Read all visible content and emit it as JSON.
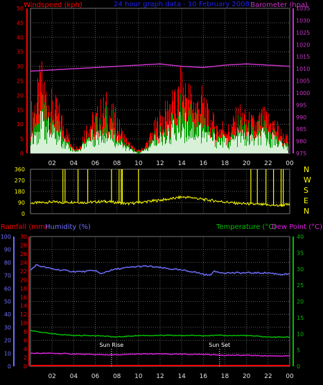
{
  "colors": {
    "background": "#000000",
    "grid": "#606060",
    "wind": "#ff0000",
    "gust_fill": "#00a000",
    "avg_fill": "#d8f0d8",
    "barometer": "#cc33cc",
    "direction": "#ffff00",
    "rainfall": "#ff0000",
    "humidity": "#6f6fff",
    "temperature": "#00c000",
    "dewpoint": "#dd22dd",
    "sun_marker": "#ffffff"
  },
  "header": {
    "windspeed_label": "Windspeed (kph)",
    "title": "24 hour graph data - 10 February 2008",
    "barometer_label": "Barometer (hpa)"
  },
  "panel3_header": {
    "rainfall_label": "Rainfall (mm)",
    "humidity_label": "Humidity (%)",
    "temperature_label": "Temperature (°C)",
    "dewpoint_label": "Dew Point (°C)"
  },
  "time_ticks": [
    "02",
    "04",
    "06",
    "08",
    "10",
    "12",
    "14",
    "16",
    "18",
    "20",
    "22",
    "00"
  ],
  "chart_data": [
    {
      "type": "area",
      "panel": "wind",
      "left_axis": {
        "label": "Windspeed (kph)",
        "ticks": [
          0,
          5,
          10,
          15,
          20,
          25,
          30,
          35,
          40,
          45,
          50
        ],
        "ylim": [
          0,
          50
        ]
      },
      "right_axis": {
        "label": "Barometer (hpa)",
        "ticks": [
          975,
          980,
          985,
          990,
          995,
          1000,
          1005,
          1010,
          1015,
          1020,
          1025,
          1030,
          1035
        ],
        "ylim": [
          975,
          1035
        ]
      },
      "x": {
        "unit": "hour",
        "range": [
          0,
          24
        ],
        "tick_labels": [
          "02",
          "04",
          "06",
          "08",
          "10",
          "12",
          "14",
          "16",
          "18",
          "20",
          "22",
          "00"
        ]
      },
      "series": [
        {
          "name": "Windspeed (kph)",
          "hours": [
            0,
            0.5,
            1,
            1.5,
            2,
            2.5,
            3,
            3.5,
            4,
            4.5,
            5,
            5.5,
            6,
            6.5,
            7,
            7.5,
            8,
            8.5,
            9,
            9.5,
            10,
            10.5,
            11,
            11.5,
            12,
            12.5,
            13,
            13.5,
            14,
            14.5,
            15,
            15.5,
            16,
            16.5,
            17,
            17.5,
            18,
            18.5,
            19,
            19.5,
            20,
            20.5,
            21,
            21.5,
            22,
            22.5,
            23,
            23.5,
            24
          ],
          "gust": [
            14,
            18,
            26,
            20,
            17,
            15,
            11,
            6,
            3,
            2,
            8,
            11,
            12,
            15,
            17,
            14,
            12,
            7,
            4,
            2,
            1,
            2,
            5,
            9,
            12,
            14,
            19,
            17,
            24,
            22,
            19,
            17,
            19,
            13,
            11,
            9,
            10,
            8,
            12,
            14,
            12,
            11,
            10,
            13,
            12,
            11,
            9,
            6,
            5
          ],
          "avg": [
            7,
            9,
            12,
            10,
            8,
            7,
            5,
            3,
            1,
            1,
            4,
            6,
            7,
            8,
            9,
            7,
            6,
            3,
            2,
            1,
            0,
            1,
            2,
            5,
            6,
            7,
            10,
            9,
            12,
            11,
            10,
            9,
            10,
            7,
            6,
            5,
            5,
            4,
            6,
            7,
            6,
            6,
            5,
            7,
            6,
            6,
            5,
            3,
            2
          ]
        },
        {
          "name": "Barometer (hpa)",
          "hours": [
            0,
            2,
            4,
            6,
            8,
            10,
            12,
            14,
            16,
            18,
            20,
            22,
            24
          ],
          "values": [
            1009,
            1009.5,
            1010,
            1010.5,
            1011,
            1011.5,
            1012,
            1011,
            1010.5,
            1011.5,
            1012,
            1011.5,
            1011
          ]
        }
      ]
    },
    {
      "type": "line",
      "panel": "direction",
      "left_axis": {
        "ticks": [
          0,
          90,
          180,
          270,
          360
        ],
        "ylim": [
          0,
          360
        ]
      },
      "right_labels": [
        "N",
        "W",
        "S",
        "E",
        "N"
      ],
      "series": [
        {
          "name": "Wind direction",
          "hours": [
            0,
            1,
            2,
            3,
            4,
            5,
            6,
            7,
            8,
            9,
            10,
            11,
            12,
            13,
            14,
            15,
            16,
            17,
            18,
            19,
            20,
            21,
            22,
            23,
            24
          ],
          "values": [
            85,
            90,
            95,
            90,
            95,
            90,
            95,
            100,
            90,
            80,
            90,
            100,
            110,
            120,
            135,
            130,
            115,
            105,
            95,
            85,
            80,
            75,
            70,
            65,
            75
          ],
          "spikes_hours": [
            3.0,
            3.2,
            4.4,
            5.3,
            7.5,
            8.2,
            8.4,
            8.5,
            10.0,
            20.4,
            21.0,
            21.8,
            22.5,
            23.2,
            23.4
          ]
        }
      ]
    },
    {
      "type": "line",
      "panel": "temp_hum",
      "left_axis_1": {
        "label": "Humidity (%)",
        "ticks": [
          0,
          10,
          20,
          30,
          40,
          50,
          60,
          70,
          80,
          90,
          100
        ],
        "ylim": [
          0,
          100
        ]
      },
      "left_axis_2": {
        "label": "Rainfall (mm)",
        "ticks": [
          0,
          2,
          4,
          6,
          8,
          10,
          12,
          14,
          16,
          18,
          20,
          22,
          24,
          26,
          28,
          30
        ],
        "ylim": [
          0,
          30
        ]
      },
      "right_axis": {
        "label": "Temperature (°C)",
        "ticks": [
          0,
          5,
          10,
          15,
          20,
          25,
          30,
          35,
          40
        ],
        "ylim": [
          0,
          40
        ]
      },
      "annotations": [
        {
          "text": "Sun Rise",
          "hour": 7.5
        },
        {
          "text": "Sun Set",
          "hour": 17.5
        }
      ],
      "series": [
        {
          "name": "Humidity (%)",
          "hours": [
            0,
            0.5,
            1,
            2,
            3,
            4,
            5,
            6,
            6.5,
            7,
            8,
            9,
            10,
            11,
            12,
            13,
            14,
            15,
            16,
            16.5,
            17,
            18,
            19,
            20,
            21,
            22,
            23,
            24
          ],
          "values": [
            74,
            78,
            77,
            75,
            74,
            73,
            73,
            74,
            71,
            73,
            75,
            76,
            77,
            77,
            76,
            75,
            74,
            73,
            71,
            70,
            73,
            72,
            72,
            72,
            72,
            72,
            71,
            71
          ]
        },
        {
          "name": "Temperature (°C)",
          "hours": [
            0,
            1,
            2,
            4,
            6,
            8,
            10,
            12,
            14,
            16,
            18,
            20,
            22,
            24
          ],
          "values": [
            11,
            10.5,
            10,
            9.5,
            9.5,
            9,
            9.5,
            9.5,
            9.5,
            9.5,
            9.5,
            9.5,
            9,
            9
          ]
        },
        {
          "name": "Dew Point (°C)",
          "hours": [
            0,
            1,
            2,
            4,
            6,
            8,
            10,
            12,
            14,
            16,
            18,
            20,
            22,
            24
          ],
          "values": [
            4,
            4,
            4,
            3.8,
            3.6,
            3.5,
            3.8,
            3.8,
            3.7,
            3.7,
            3.4,
            3.4,
            3.2,
            3.2
          ]
        },
        {
          "name": "Rainfall (mm)",
          "hours": [
            0,
            24
          ],
          "values": [
            0,
            0
          ]
        }
      ]
    }
  ]
}
